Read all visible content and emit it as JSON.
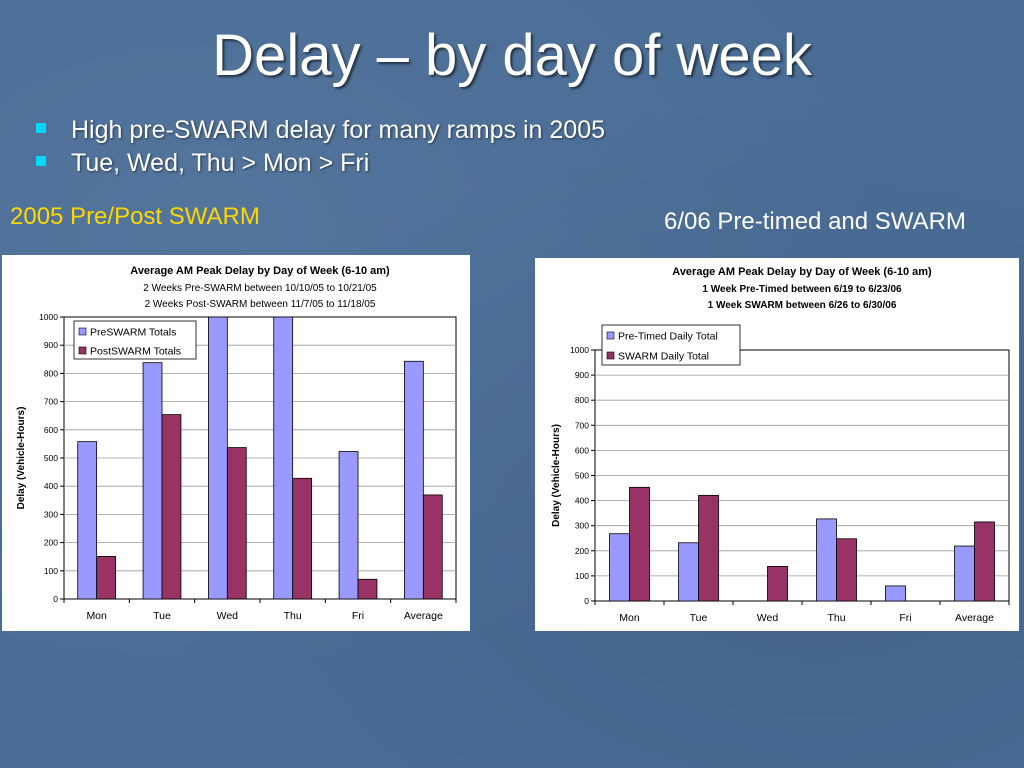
{
  "slide": {
    "title": "Delay – by day of week",
    "bullets": [
      "High pre-SWARM delay for many ramps in 2005",
      "Tue, Wed, Thu > Mon > Fri"
    ],
    "left_caption": "2005 Pre/Post SWARM",
    "right_caption": "6/06 Pre-timed and SWARM",
    "bullet_color": "#00d8ff",
    "left_caption_color": "#ffd700"
  },
  "chart_data": [
    {
      "type": "bar",
      "title": "Average AM Peak Delay by Day of Week (6-10 am)",
      "subtitle": [
        "2 Weeks Pre-SWARM between 10/10/05 to 10/21/05",
        "2 Weeks Post-SWARM between 11/7/05 to 11/18/05"
      ],
      "ylabel": "Delay (Vehicle-Hours)",
      "xlabel": "",
      "ylim": [
        0,
        1000
      ],
      "yticks": [
        0,
        100,
        200,
        300,
        400,
        500,
        600,
        700,
        800,
        900,
        1000
      ],
      "categories": [
        "Mon",
        "Tue",
        "Wed",
        "Thu",
        "Fri",
        "Average"
      ],
      "series": [
        {
          "name": "PreSWARM Totals",
          "color": "#9999ff",
          "values": [
            558,
            838,
            1000,
            1000,
            523,
            843
          ]
        },
        {
          "name": "PostSWARM Totals",
          "color": "#993366",
          "values": [
            151,
            654,
            537,
            428,
            70,
            369
          ]
        }
      ],
      "legend": "top-left",
      "grid": true
    },
    {
      "type": "bar",
      "title": "Average AM Peak Delay by Day of Week (6-10 am)",
      "subtitle": [
        "1 Week Pre-Timed between 6/19 to 6/23/06",
        "1 Week SWARM between 6/26 to 6/30/06"
      ],
      "ylabel": "Delay (Vehicle-Hours)",
      "xlabel": "",
      "ylim": [
        0,
        1000
      ],
      "yticks": [
        0,
        100,
        200,
        300,
        400,
        500,
        600,
        700,
        800,
        900,
        1000
      ],
      "categories": [
        "Mon",
        "Tue",
        "Wed",
        "Thu",
        "Fri",
        "Average"
      ],
      "series": [
        {
          "name": "Pre-Timed Daily Total",
          "color": "#9999ff",
          "values": [
            268,
            232,
            0,
            327,
            60,
            219
          ]
        },
        {
          "name": "SWARM Daily Total",
          "color": "#993366",
          "values": [
            453,
            421,
            138,
            248,
            0,
            315
          ]
        }
      ],
      "legend": "top-left",
      "grid": true
    }
  ]
}
